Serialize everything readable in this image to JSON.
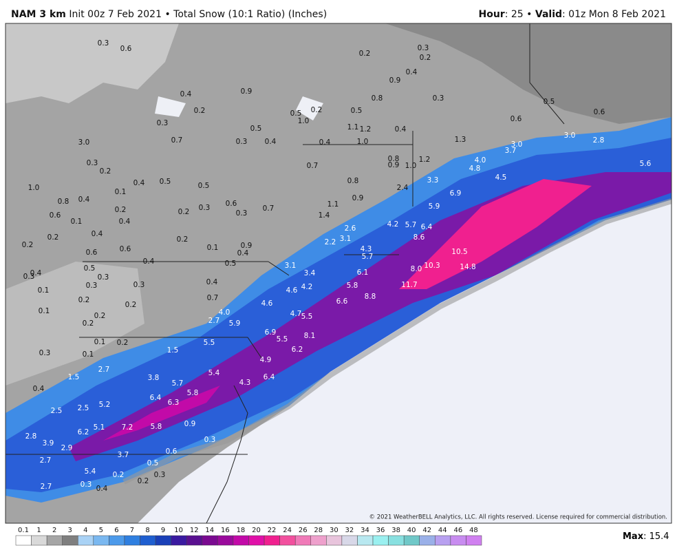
{
  "header": {
    "model": "NAM 3 km",
    "init": "Init 00z 7 Feb 2021",
    "product": "Total Snow (10:1 Ratio) (Inches)",
    "hour_label": "Hour",
    "hour": ": 25",
    "valid_label": "Valid",
    "valid": ": 01z Mon 8 Feb 2021"
  },
  "labels": [
    "0.3",
    "0.6",
    "0.2",
    "0.3",
    "0.2",
    "0.4",
    "0.9",
    "0.4",
    "0.9",
    "0.8",
    "0.3",
    "0.5",
    "0.6",
    "0.2",
    "0.5",
    "0.2",
    "0.5",
    "0.6",
    "0.3",
    "0.5",
    "1.0",
    "1.1",
    "1.2",
    "0.4",
    "3.0",
    "2.8",
    "0.7",
    "0.3",
    "0.4",
    "0.4",
    "1.0",
    "1.3",
    "3.0",
    "3.7",
    "3.0",
    "0.3",
    "0.2",
    "0.7",
    "0.8",
    "0.9",
    "1.0",
    "1.2",
    "4.0",
    "4.8",
    "5.6",
    "4.5",
    "0.4",
    "0.5",
    "0.5",
    "0.8",
    "3.3",
    "1.0",
    "0.1",
    "0.9",
    "2.4",
    "6.9",
    "0.8",
    "0.4",
    "0.2",
    "0.2",
    "0.3",
    "0.6",
    "0.3",
    "0.7",
    "1.1",
    "5.9",
    "0.6",
    "0.1",
    "0.4",
    "1.4",
    "4.2",
    "5.7",
    "6.4",
    "0.4",
    "2.6",
    "8.6",
    "0.2",
    "0.2",
    "0.2",
    "0.1",
    "0.9",
    "2.2",
    "3.1",
    "0.6",
    "0.6",
    "0.4",
    "4.3",
    "5.7",
    "10.5",
    "0.4",
    "0.5",
    "3.1",
    "0.5",
    "0.3",
    "0.4",
    "0.3",
    "3.4",
    "6.1",
    "8.0",
    "10.3",
    "14.8",
    "0.3",
    "0.3",
    "0.4",
    "4.6",
    "4.2",
    "5.8",
    "11.7",
    "0.1",
    "0.2",
    "0.2",
    "0.7",
    "4.6",
    "6.6",
    "8.8",
    "0.1",
    "0.2",
    "4.0",
    "4.7",
    "5.5",
    "0.2",
    "2.7",
    "5.9",
    "0.1",
    "0.2",
    "5.5",
    "6.9",
    "5.5",
    "8.1",
    "0.3",
    "0.1",
    "1.5",
    "6.2",
    "4.9",
    "2.7",
    "5.4",
    "3.8",
    "6.4",
    "1.5",
    "5.7",
    "4.3",
    "0.4",
    "5.8",
    "6.4",
    "6.3",
    "5.2",
    "2.5",
    "2.5",
    "0.9",
    "7.2",
    "5.8",
    "5.1",
    "6.2",
    "2.8",
    "0.3",
    "3.9",
    "2.9",
    "0.6",
    "3.7",
    "2.7",
    "0.5",
    "5.4",
    "0.2",
    "0.3",
    "0.2",
    "0.3",
    "2.7",
    "0.4"
  ],
  "legend": {
    "labels": [
      0.1,
      1,
      2,
      3,
      4,
      5,
      6,
      7,
      8,
      9,
      10,
      12,
      14,
      16,
      18,
      20,
      22,
      24,
      26,
      28,
      30,
      32,
      34,
      36,
      38,
      40,
      42,
      44,
      46,
      48
    ],
    "colors": [
      "#ffffff",
      "#d9d9d9",
      "#a6a6a6",
      "#7f7f7f",
      "#a9d2f5",
      "#7ab8f0",
      "#4c9aea",
      "#2f7fe0",
      "#1f5fd0",
      "#1a40b8",
      "#3a1aa0",
      "#5a1090",
      "#7a0a90",
      "#9a0a9c",
      "#c20aa8",
      "#e010a8",
      "#f0208f",
      "#f2509e",
      "#f07ab8",
      "#eea0cc",
      "#e8c4dc",
      "#d8d8e8",
      "#b8e8f0",
      "#9af0f0",
      "#88e0e0",
      "#70c8c8",
      "#9ab0e8",
      "#b8a0f0",
      "#c88cf0",
      "#d080f0"
    ]
  },
  "copyright": "© 2021 WeatherBELL Analytics, LLC. All rights reserved. License required for commercial distribution.",
  "max": {
    "label": "Max",
    "value": ": 15.4"
  }
}
